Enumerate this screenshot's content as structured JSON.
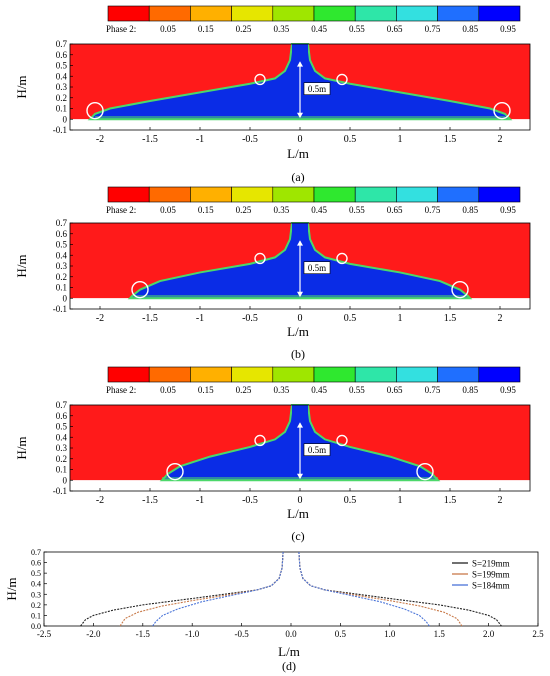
{
  "colorbar": {
    "label": "Phase 2:",
    "tick_labels": [
      "0.05",
      "0.15",
      "0.25",
      "0.35",
      "0.45",
      "0.55",
      "0.65",
      "0.75",
      "0.85",
      "0.95"
    ],
    "colors": [
      "#ff0000",
      "#ff6a00",
      "#ffb000",
      "#e6e600",
      "#9fe600",
      "#2fe82f",
      "#2ee6a8",
      "#33e0e0",
      "#1f6fff",
      "#0000ff"
    ]
  },
  "colors": {
    "air": "#ff1a1a",
    "water": "#0a2ce6",
    "interface": "#4cd86a",
    "marker": "#ffffff"
  },
  "chart_data": [
    {
      "panel": "(a)",
      "type": "heatmap",
      "xlabel": "L/m",
      "ylabel": "H/m",
      "xlim": [
        -2.3,
        2.3
      ],
      "ylim": [
        -0.1,
        0.7
      ],
      "xticks": [
        "-2",
        "-1.5",
        "-1",
        "-0.5",
        "0",
        "0.5",
        "1",
        "1.5",
        "2"
      ],
      "yticks": [
        "-0.1",
        "0",
        "0.1",
        "0.2",
        "0.3",
        "0.4",
        "0.5",
        "0.6",
        "0.7"
      ],
      "annotation": "0.5m",
      "front_x": 2.05,
      "dam_halfwidth": 0.08,
      "circles": [
        [
          -2.05,
          0.08
        ],
        [
          -0.4,
          0.37
        ],
        [
          0.42,
          0.37
        ],
        [
          2.02,
          0.08
        ]
      ],
      "profile": [
        [
          0.0,
          0.7
        ],
        [
          0.08,
          0.7
        ],
        [
          0.1,
          0.55
        ],
        [
          0.15,
          0.45
        ],
        [
          0.25,
          0.38
        ],
        [
          0.5,
          0.33
        ],
        [
          1.0,
          0.25
        ],
        [
          1.5,
          0.17
        ],
        [
          1.9,
          0.1
        ],
        [
          2.05,
          0.05
        ],
        [
          2.1,
          0.0
        ]
      ]
    },
    {
      "panel": "(b)",
      "type": "heatmap",
      "xlabel": "L/m",
      "ylabel": "H/m",
      "xlim": [
        -2.3,
        2.3
      ],
      "ylim": [
        -0.1,
        0.7
      ],
      "xticks": [
        "-2",
        "-1.5",
        "-1",
        "-0.5",
        "0",
        "0.5",
        "1",
        "1.5",
        "2"
      ],
      "yticks": [
        "-0.1",
        "0",
        "0.1",
        "0.2",
        "0.3",
        "0.4",
        "0.5",
        "0.6",
        "0.7"
      ],
      "annotation": "0.5m",
      "front_x": 1.68,
      "dam_halfwidth": 0.08,
      "circles": [
        [
          -1.6,
          0.08
        ],
        [
          -0.4,
          0.37
        ],
        [
          0.42,
          0.37
        ],
        [
          1.6,
          0.08
        ]
      ],
      "profile": [
        [
          0.0,
          0.7
        ],
        [
          0.08,
          0.7
        ],
        [
          0.1,
          0.55
        ],
        [
          0.15,
          0.45
        ],
        [
          0.25,
          0.38
        ],
        [
          0.5,
          0.32
        ],
        [
          1.0,
          0.24
        ],
        [
          1.4,
          0.16
        ],
        [
          1.6,
          0.08
        ],
        [
          1.68,
          0.02
        ],
        [
          1.7,
          0.0
        ]
      ]
    },
    {
      "panel": "(c)",
      "type": "heatmap",
      "xlabel": "L/m",
      "ylabel": "H/m",
      "xlim": [
        -2.3,
        2.3
      ],
      "ylim": [
        -0.1,
        0.7
      ],
      "xticks": [
        "-2",
        "-1.5",
        "-1",
        "-0.5",
        "0",
        "0.5",
        "1",
        "1.5",
        "2"
      ],
      "yticks": [
        "-0.1",
        "0",
        "0.1",
        "0.2",
        "0.3",
        "0.4",
        "0.5",
        "0.6",
        "0.7"
      ],
      "annotation": "0.5m",
      "front_x": 1.38,
      "dam_halfwidth": 0.08,
      "circles": [
        [
          -1.25,
          0.08
        ],
        [
          -0.4,
          0.37
        ],
        [
          0.42,
          0.37
        ],
        [
          1.25,
          0.08
        ]
      ],
      "profile": [
        [
          0.0,
          0.7
        ],
        [
          0.08,
          0.7
        ],
        [
          0.1,
          0.55
        ],
        [
          0.15,
          0.45
        ],
        [
          0.25,
          0.38
        ],
        [
          0.5,
          0.31
        ],
        [
          0.9,
          0.22
        ],
        [
          1.2,
          0.13
        ],
        [
          1.32,
          0.06
        ],
        [
          1.38,
          0.0
        ]
      ]
    },
    {
      "panel": "(d)",
      "type": "line",
      "xlabel": "L/m",
      "ylabel": "H/m",
      "xlim": [
        -2.5,
        2.5
      ],
      "ylim": [
        0.0,
        0.7
      ],
      "xticks": [
        "-2.5",
        "-2.0",
        "-1.5",
        "-1.0",
        "-0.5",
        "0.0",
        "0.5",
        "1.0",
        "1.5",
        "2.0",
        "2.5"
      ],
      "yticks": [
        "0.0",
        "0.1",
        "0.2",
        "0.3",
        "0.4",
        "0.5",
        "0.6",
        "0.7"
      ],
      "legend_position": "top-right",
      "series": [
        {
          "name": "S=219mm",
          "color": "#222222",
          "points": [
            [
              0.08,
              0.7
            ],
            [
              0.09,
              0.55
            ],
            [
              0.12,
              0.45
            ],
            [
              0.2,
              0.38
            ],
            [
              0.35,
              0.34
            ],
            [
              0.6,
              0.31
            ],
            [
              1.0,
              0.26
            ],
            [
              1.5,
              0.2
            ],
            [
              1.8,
              0.15
            ],
            [
              2.0,
              0.1
            ],
            [
              2.08,
              0.06
            ],
            [
              2.13,
              0.0
            ]
          ]
        },
        {
          "name": "S=199mm",
          "color": "#c87a4a",
          "points": [
            [
              0.08,
              0.7
            ],
            [
              0.09,
              0.55
            ],
            [
              0.12,
              0.45
            ],
            [
              0.2,
              0.38
            ],
            [
              0.35,
              0.34
            ],
            [
              0.6,
              0.3
            ],
            [
              1.0,
              0.24
            ],
            [
              1.3,
              0.19
            ],
            [
              1.55,
              0.13
            ],
            [
              1.68,
              0.07
            ],
            [
              1.73,
              0.0
            ]
          ]
        },
        {
          "name": "S=184mm",
          "color": "#4a74d8",
          "points": [
            [
              0.08,
              0.7
            ],
            [
              0.09,
              0.55
            ],
            [
              0.12,
              0.45
            ],
            [
              0.2,
              0.38
            ],
            [
              0.35,
              0.34
            ],
            [
              0.6,
              0.29
            ],
            [
              0.9,
              0.23
            ],
            [
              1.15,
              0.16
            ],
            [
              1.3,
              0.1
            ],
            [
              1.37,
              0.04
            ],
            [
              1.4,
              0.0
            ]
          ]
        }
      ]
    }
  ]
}
